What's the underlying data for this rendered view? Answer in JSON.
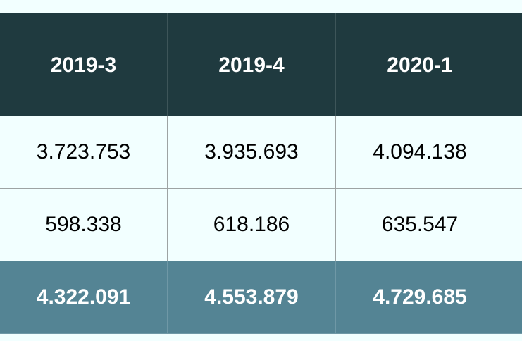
{
  "table": {
    "columns": [
      "2019-3",
      "2019-4",
      "2020-1",
      ""
    ],
    "rows": [
      [
        "3.723.753",
        "3.935.693",
        "4.094.138",
        ""
      ],
      [
        "598.338",
        "618.186",
        "635.547",
        ""
      ]
    ],
    "total_row": [
      "4.322.091",
      "4.553.879",
      "4.729.685",
      ""
    ]
  },
  "colors": {
    "background": "#f2ffff",
    "header_bg": "#1f3a3f",
    "total_bg": "#548494",
    "border": "#9ea3a3"
  }
}
